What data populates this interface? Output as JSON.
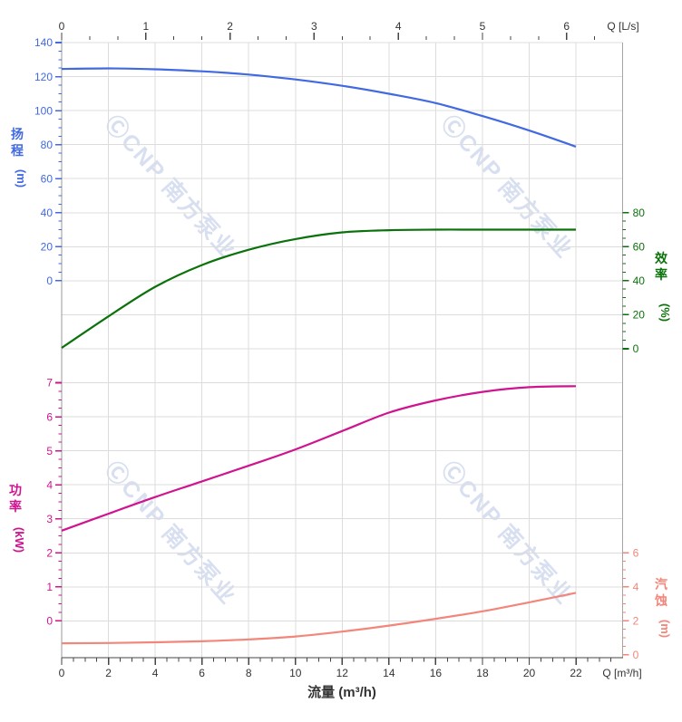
{
  "chart_data": {
    "type": "line",
    "description": "Pump performance curves: head, efficiency, power and NPSH versus flow",
    "x_unit_bottom": "m³/h",
    "x_unit_top": "L/s",
    "x_m3h": [
      0,
      2,
      4,
      6,
      8,
      10,
      12,
      14,
      16,
      18,
      20,
      22
    ],
    "series": [
      {
        "id": "head",
        "name": "扬程",
        "unit": "m",
        "axis": "head",
        "color": "#4169E1",
        "values": [
          124.5,
          124.8,
          124.3,
          123.1,
          121.2,
          118.3,
          114.6,
          109.9,
          104.4,
          96.8,
          88.3,
          78.8
        ]
      },
      {
        "id": "eff",
        "name": "效率",
        "unit": "%",
        "axis": "eff",
        "color": "#0B720B",
        "values": [
          0.5,
          19.0,
          36.4,
          49.2,
          58.2,
          64.5,
          68.4,
          69.7,
          70.0,
          70.0,
          70.0,
          70.0
        ]
      },
      {
        "id": "power",
        "name": "功率",
        "unit": "kW",
        "axis": "power",
        "color": "#D0138F",
        "values": [
          2.65,
          3.15,
          3.64,
          4.1,
          4.56,
          5.04,
          5.58,
          6.12,
          6.48,
          6.73,
          6.87,
          6.9
        ]
      },
      {
        "id": "npsh",
        "name": "汽蚀",
        "unit": "m",
        "axis": "npsh",
        "color": "#F2867A",
        "values": [
          0.68,
          0.7,
          0.74,
          0.8,
          0.91,
          1.08,
          1.37,
          1.72,
          2.12,
          2.56,
          3.09,
          3.65
        ]
      }
    ],
    "axes": {
      "top": {
        "label": "Q [L/s]",
        "ticks": [
          0,
          1,
          2,
          3,
          4,
          5,
          6
        ],
        "minor_step": 0.3333,
        "range": [
          0,
          6.66
        ],
        "color": "#333333"
      },
      "bottom": {
        "label": "Q [m³/h]",
        "title": "流量 (m³/h)",
        "ticks": [
          0,
          2,
          4,
          6,
          8,
          10,
          12,
          14,
          16,
          18,
          20,
          22
        ],
        "minor_step": 0.5,
        "range": [
          0,
          24
        ],
        "color": "#333333"
      },
      "head": {
        "title_cjk": "扬程",
        "title_unit": "(m)",
        "ticks": [
          0,
          20,
          40,
          60,
          80,
          100,
          120,
          140
        ],
        "minor_step": 5,
        "color": "#4169E1",
        "side": "left"
      },
      "power": {
        "title_cjk": "功率",
        "title_unit": "(kW)",
        "ticks": [
          0,
          1,
          2,
          3,
          4,
          5,
          6,
          7
        ],
        "minor_step": 0.25,
        "color": "#D0138F",
        "side": "left"
      },
      "eff": {
        "title_cjk": "效率",
        "title_unit": "(%)",
        "ticks": [
          0,
          20,
          40,
          60,
          80
        ],
        "minor_step": 5,
        "color": "#0B720B",
        "side": "right"
      },
      "npsh": {
        "title_cjk": "汽蚀",
        "title_unit": "(m)",
        "ticks": [
          0,
          2,
          4,
          6
        ],
        "minor_step": 0.5,
        "color": "#F2867A",
        "side": "right"
      }
    },
    "layout_hints": {
      "grid": true,
      "legend": "none",
      "background": "#ffffff",
      "gridline_color": "#DCDCDC"
    },
    "watermark": {
      "text": "ⒸCNP 南方泵业",
      "color": "#D8DFF0"
    }
  }
}
